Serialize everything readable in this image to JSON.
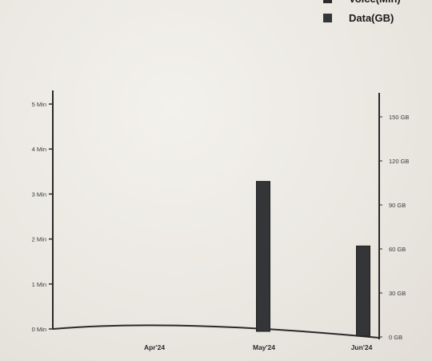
{
  "chart_data": {
    "type": "bar",
    "categories": [
      "Apr'24",
      "May'24",
      "Jun'24"
    ],
    "series": [
      {
        "name": "Voice(Min)",
        "axis": "left",
        "values": [
          0,
          0,
          0
        ],
        "color": "#2b2b2b"
      },
      {
        "name": "Data(GB)",
        "axis": "right",
        "values": [
          0,
          106,
          62
        ],
        "color": "#333537"
      }
    ],
    "left_axis": {
      "ticks": [
        "0 Min",
        "1 Min",
        "2 Min",
        "3 Min",
        "4 Min",
        "5 Min"
      ],
      "ylim": [
        0,
        5
      ]
    },
    "right_axis": {
      "ticks": [
        "0 GB",
        "30 GB",
        "60 GB",
        "90 GB",
        "120 GB",
        "150 GB"
      ],
      "ylim": [
        0,
        150
      ]
    },
    "grid": false,
    "legend": {
      "placement": "top-right"
    }
  }
}
